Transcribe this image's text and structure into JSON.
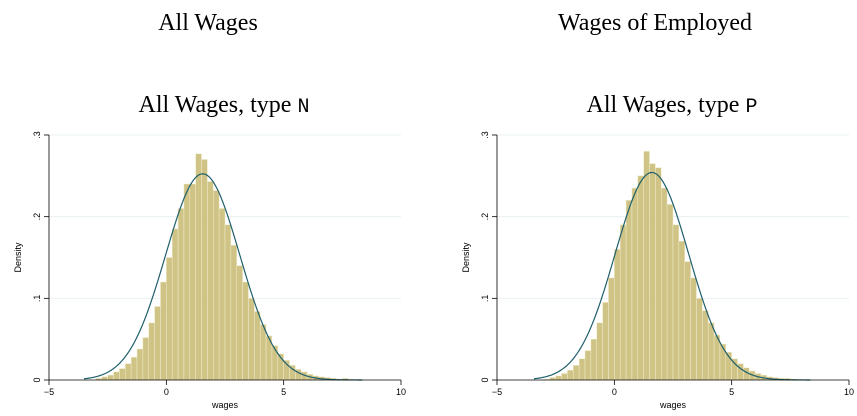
{
  "headings": [
    "All Wages",
    "Wages of Employed"
  ],
  "chart_data": [
    {
      "type": "histogram",
      "title": "All Wages, type",
      "title_code": "N",
      "xlabel": "wages",
      "ylabel": "Density",
      "bins": [
        -3.0,
        -2.75,
        -2.5,
        -2.25,
        -2.0,
        -1.75,
        -1.5,
        -1.25,
        -1.0,
        -0.75,
        -0.5,
        -0.25,
        0,
        0.25,
        0.5,
        0.75,
        1.0,
        1.25,
        1.5,
        1.75,
        2.0,
        2.25,
        2.5,
        2.75,
        3.0,
        3.25,
        3.5,
        3.75,
        4.0,
        4.25,
        4.5,
        4.75,
        5.0,
        5.25,
        5.5,
        5.75,
        6.0,
        6.25,
        6.5,
        6.75,
        7.0,
        7.25,
        7.5,
        7.75,
        8.0
      ],
      "values": [
        0.002,
        0.004,
        0.006,
        0.01,
        0.014,
        0.02,
        0.028,
        0.038,
        0.052,
        0.07,
        0.09,
        0.12,
        0.15,
        0.185,
        0.21,
        0.24,
        0.24,
        0.277,
        0.27,
        0.243,
        0.232,
        0.21,
        0.19,
        0.165,
        0.14,
        0.12,
        0.1,
        0.084,
        0.068,
        0.054,
        0.042,
        0.032,
        0.024,
        0.018,
        0.013,
        0.01,
        0.007,
        0.005,
        0.004,
        0.003,
        0.002,
        0.001,
        0.002,
        0.001
      ],
      "color": "#cfc486",
      "normal_fit": {
        "mean": 1.55,
        "sd": 1.58,
        "color": "#1f5f6b"
      },
      "xlim": [
        -5,
        10
      ],
      "ylim": [
        0,
        0.3
      ],
      "xticks": [
        {
          "value": -5,
          "label": "−5"
        },
        0,
        5,
        10
      ],
      "yticks": [
        0,
        {
          "value": 0.1,
          "label": ".1"
        },
        {
          "value": 0.2,
          "label": ".2"
        },
        {
          "value": 0.3,
          "label": ".3"
        }
      ],
      "grid": true
    },
    {
      "type": "histogram",
      "title": "All Wages, type",
      "title_code": "P",
      "xlabel": "wages",
      "ylabel": "Density",
      "bins": [
        -3.0,
        -2.75,
        -2.5,
        -2.25,
        -2.0,
        -1.75,
        -1.5,
        -1.25,
        -1.0,
        -0.75,
        -0.5,
        -0.25,
        0,
        0.25,
        0.5,
        0.75,
        1.0,
        1.25,
        1.5,
        1.75,
        2.0,
        2.25,
        2.5,
        2.75,
        3.0,
        3.25,
        3.5,
        3.75,
        4.0,
        4.25,
        4.5,
        4.75,
        5.0,
        5.25,
        5.5,
        5.75,
        6.0,
        6.25,
        6.5,
        6.75,
        7.0,
        7.25,
        7.5,
        7.75,
        8.0
      ],
      "values": [
        0.001,
        0.003,
        0.005,
        0.008,
        0.012,
        0.018,
        0.026,
        0.036,
        0.05,
        0.07,
        0.095,
        0.125,
        0.16,
        0.19,
        0.22,
        0.235,
        0.25,
        0.28,
        0.265,
        0.26,
        0.235,
        0.215,
        0.19,
        0.17,
        0.145,
        0.125,
        0.1,
        0.085,
        0.07,
        0.055,
        0.044,
        0.034,
        0.026,
        0.02,
        0.015,
        0.011,
        0.008,
        0.006,
        0.004,
        0.003,
        0.002,
        0.002,
        0.001,
        0.001
      ],
      "color": "#cfc486",
      "normal_fit": {
        "mean": 1.6,
        "sd": 1.57,
        "color": "#1f5f6b"
      },
      "xlim": [
        -5,
        10
      ],
      "ylim": [
        0,
        0.3
      ],
      "xticks": [
        {
          "value": -5,
          "label": "−5"
        },
        0,
        5,
        10
      ],
      "yticks": [
        0,
        {
          "value": 0.1,
          "label": ".1"
        },
        {
          "value": 0.2,
          "label": ".2"
        },
        {
          "value": 0.3,
          "label": ".3"
        }
      ],
      "grid": true
    }
  ]
}
